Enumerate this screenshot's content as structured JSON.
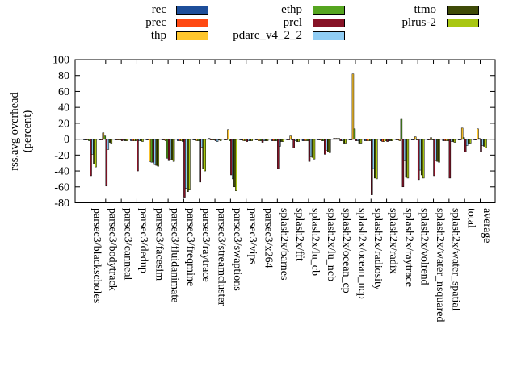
{
  "chart_data": {
    "type": "bar",
    "title": "",
    "ylabel_lines": [
      "rss.avg overhead",
      "(percent)"
    ],
    "xlabel": "",
    "ylim": [
      -80,
      100
    ],
    "yticks": [
      100,
      80,
      60,
      40,
      20,
      0,
      -20,
      -40,
      -60,
      -80
    ],
    "grid": false,
    "legend_position": "top",
    "background": "#ffffff",
    "axis_color": "#000000",
    "categories": [
      "parsec3/blackscholes",
      "parsec3/bodytrack",
      "parsec3/canneal",
      "parsec3/dedup",
      "parsec3/facesim",
      "parsec3/fluidanimate",
      "parsec3/freqmine",
      "parsec3/raytrace",
      "parsec3/streamcluster",
      "parsec3/swaptions",
      "parsec3/vips",
      "parsec3/x264",
      "splash2x/barnes",
      "splash2x/fft",
      "splash2x/lu_cb",
      "splash2x/lu_ncb",
      "splash2x/ocean_cp",
      "splash2x/ocean_ncp",
      "splash2x/radiosity",
      "splash2x/radix",
      "splash2x/raytrace",
      "splash2x/volrend",
      "splash2x/water_nsquared",
      "splash2x/water_spatial",
      "total",
      "average"
    ],
    "series": [
      {
        "name": "rec",
        "color": "#1d4e9a",
        "values": [
          -1,
          -1,
          -1,
          -2,
          -1,
          -1,
          -2,
          -1,
          1,
          -1,
          -1,
          -1,
          -2,
          -1,
          -2,
          -1,
          1,
          -1,
          -2,
          -2,
          -1,
          -1,
          -1,
          -2,
          -1,
          -1
        ]
      },
      {
        "name": "prec",
        "color": "#ff4912",
        "values": [
          -1,
          -1,
          -1,
          -2,
          -1,
          -1,
          -2,
          -1,
          -1,
          -1,
          -1,
          -1,
          -2,
          -1,
          -2,
          -1,
          1,
          -1,
          -2,
          -3,
          -1,
          -1,
          -1,
          -2,
          -1,
          -1
        ]
      },
      {
        "name": "thp",
        "color": "#ffc62c",
        "values": [
          -1,
          8,
          -1,
          -2,
          -28,
          -2,
          -2,
          -2,
          -1,
          12,
          -2,
          -2,
          -2,
          4,
          -2,
          -2,
          1,
          82,
          -2,
          -3,
          -2,
          3,
          2,
          -2,
          14,
          13
        ]
      },
      {
        "name": "ethp",
        "color": "#55a51f",
        "values": [
          -2,
          4,
          -1,
          -2,
          -29,
          -24,
          -3,
          -2,
          -1,
          -2,
          -2,
          -2,
          -2,
          -1,
          -2,
          -2,
          1,
          13,
          -2,
          -2,
          26,
          -1,
          -1,
          -2,
          2,
          1
        ]
      },
      {
        "name": "prcl",
        "color": "#861226",
        "values": [
          -46,
          -59,
          -2,
          -40,
          -29,
          -27,
          -73,
          -54,
          -2,
          -45,
          -3,
          -4,
          -37,
          -11,
          -28,
          -19,
          -2,
          -2,
          -70,
          -3,
          -60,
          -51,
          -46,
          -49,
          -16,
          -16
        ]
      },
      {
        "name": "pdarc_v4_2_2",
        "color": "#90cdf4",
        "values": [
          -19,
          -13,
          -1,
          -2,
          -32,
          -25,
          -62,
          -10,
          -3,
          -50,
          -2,
          -2,
          -9,
          -2,
          -22,
          -14,
          -2,
          -2,
          -37,
          -2,
          -27,
          -39,
          -27,
          -3,
          -8,
          -8
        ]
      },
      {
        "name": "ttmo",
        "color": "#3f4b07",
        "values": [
          -31,
          -4,
          -2,
          -2,
          -33,
          -26,
          -66,
          -37,
          -1,
          -60,
          -2,
          -2,
          -3,
          -3,
          -23,
          -16,
          -5,
          -5,
          -49,
          -2,
          -48,
          -45,
          -28,
          -3,
          -5,
          -9
        ]
      },
      {
        "name": "plrus-2",
        "color": "#a9c712",
        "values": [
          -35,
          -5,
          -2,
          -3,
          -34,
          -28,
          -64,
          -40,
          -2,
          -65,
          -2,
          -2,
          -3,
          -3,
          -25,
          -17,
          -5,
          -5,
          -50,
          -2,
          -49,
          -49,
          -29,
          -4,
          -5,
          -11
        ]
      }
    ]
  }
}
